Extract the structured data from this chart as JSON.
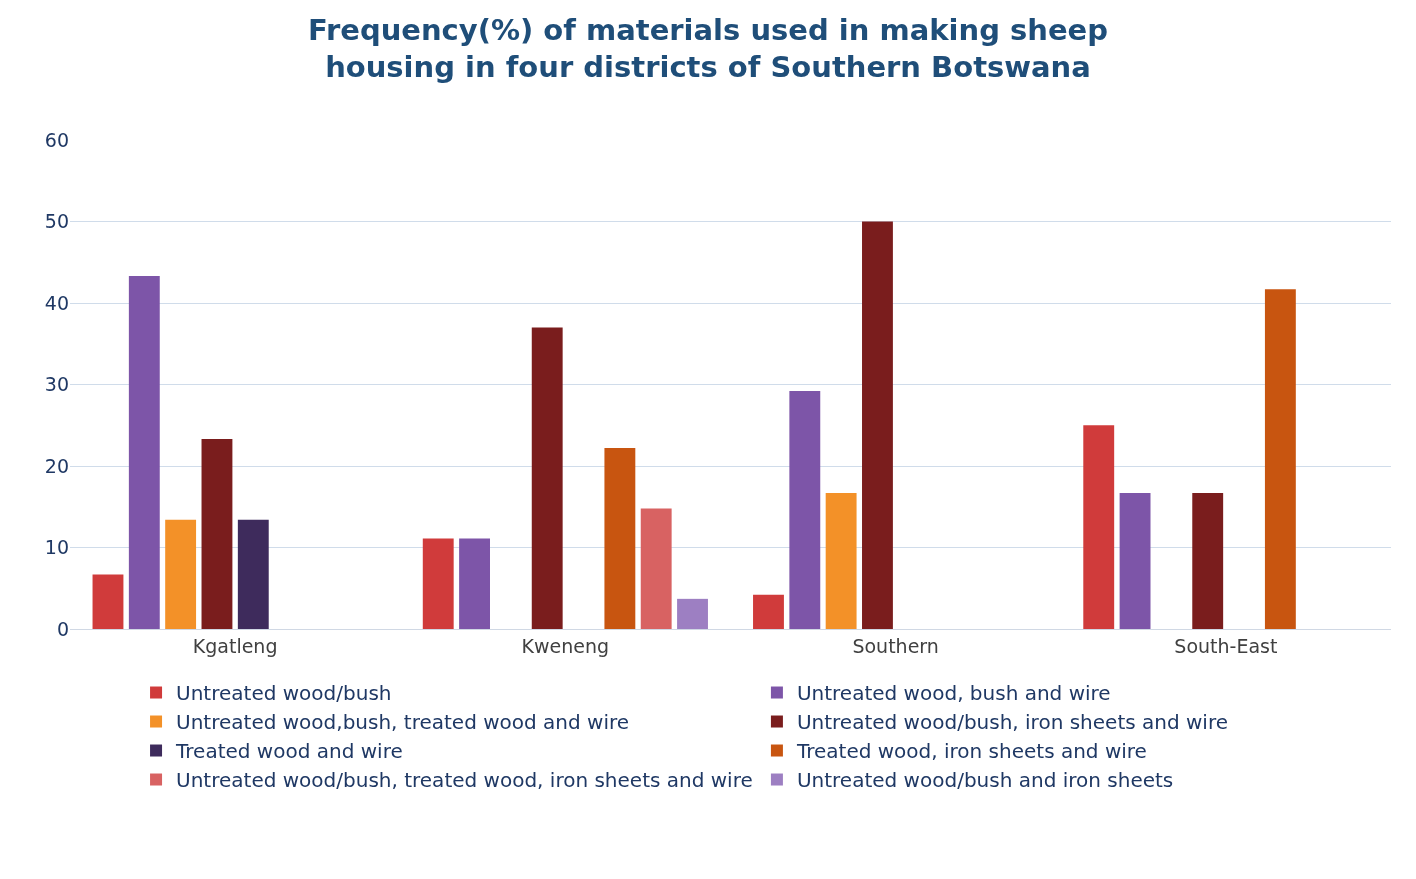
{
  "chart_data": {
    "type": "bar",
    "title": "Frequency(%) of materials used in making sheep housing in four districts of Southern Botswana",
    "categories": [
      "Kgatleng",
      "Kweneng",
      "Southern",
      "South-East"
    ],
    "series": [
      {
        "name": "Untreated wood/bush",
        "color": "#d03b3b",
        "values": [
          6.7,
          11.1,
          4.2,
          25
        ]
      },
      {
        "name": "Untreated wood, bush and wire",
        "color": "#7d55a8",
        "values": [
          43.3,
          11.1,
          29.2,
          16.7
        ]
      },
      {
        "name": "Untreated wood,bush, treated wood and wire",
        "color": "#f39128",
        "values": [
          13.4,
          null,
          16.7,
          null
        ]
      },
      {
        "name": "Untreated wood/bush, iron sheets and wire",
        "color": "#7a1d1d",
        "values": [
          23.3,
          37.0,
          50,
          16.7
        ]
      },
      {
        "name": "Treated wood and wire",
        "color": "#3e2b5c",
        "values": [
          13.4,
          null,
          null,
          null
        ]
      },
      {
        "name": "Treated wood, iron sheets and wire",
        "color": "#c85510",
        "values": [
          null,
          22.2,
          null,
          41.7
        ]
      },
      {
        "name": "Untreated wood/bush, treated wood, iron sheets and wire",
        "color": "#d86262",
        "values": [
          null,
          14.8,
          null,
          null
        ]
      },
      {
        "name": "Untreated wood/bush and iron sheets",
        "color": "#9d7fc2",
        "values": [
          null,
          3.7,
          null,
          null
        ]
      }
    ],
    "ylim": [
      0,
      60
    ],
    "yticks": [
      0,
      10,
      20,
      30,
      40,
      50,
      60
    ],
    "grid": "y",
    "legend": "bottom"
  }
}
